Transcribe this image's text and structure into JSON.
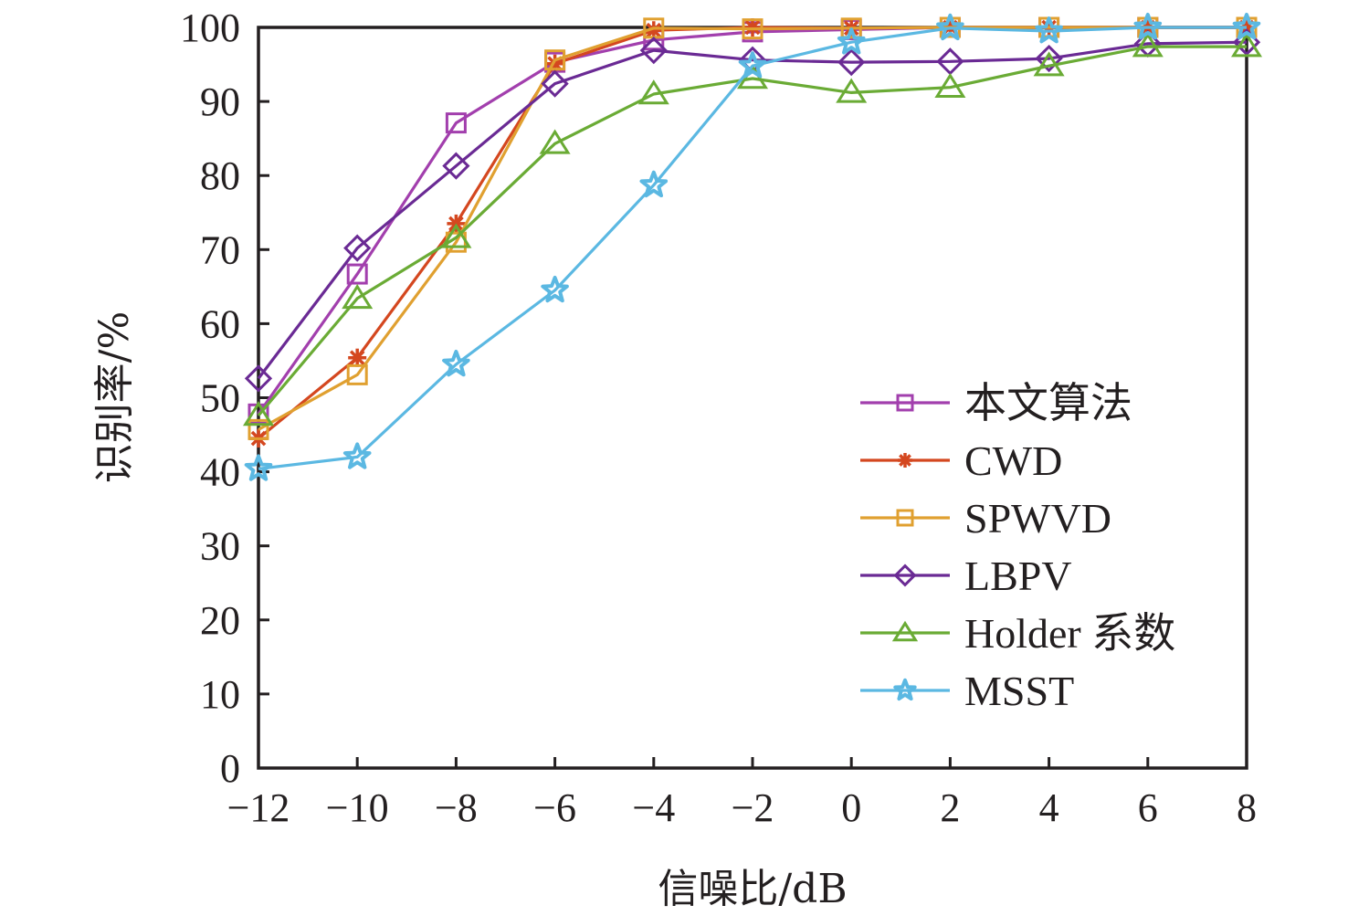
{
  "chart_data": {
    "type": "line",
    "title": "",
    "xlabel": "信噪比/dB",
    "ylabel": "识别率/%",
    "x": [
      -12,
      -10,
      -8,
      -6,
      -4,
      -2,
      0,
      2,
      4,
      6,
      8
    ],
    "xlim": [
      -12,
      8
    ],
    "ylim": [
      0,
      100
    ],
    "xticks": [
      -12,
      -10,
      -8,
      -6,
      -4,
      -2,
      0,
      2,
      4,
      6,
      8
    ],
    "xtick_labels": [
      "−12",
      "−10",
      "−8",
      "−6",
      "−4",
      "−2",
      "0",
      "2",
      "4",
      "6",
      "8"
    ],
    "yticks": [
      0,
      10,
      20,
      30,
      40,
      50,
      60,
      70,
      80,
      90,
      100
    ],
    "ytick_labels": [
      "0",
      "10",
      "20",
      "30",
      "40",
      "50",
      "60",
      "70",
      "80",
      "90",
      "100"
    ],
    "grid": false,
    "legend_position": "bottom-right",
    "series": [
      {
        "name": "本文算法",
        "color": "#a23fad",
        "marker": "square",
        "values": [
          47.8,
          66.7,
          87.1,
          95.3,
          98.3,
          99.4,
          99.7,
          100,
          100,
          100,
          100
        ]
      },
      {
        "name": "CWD",
        "color": "#d4471f",
        "marker": "asterisk",
        "values": [
          44.5,
          55.4,
          73.5,
          95.1,
          99.6,
          100,
          99.9,
          100,
          100,
          100,
          100
        ]
      },
      {
        "name": "SPWVD",
        "color": "#e0a030",
        "marker": "square",
        "values": [
          45.7,
          53.1,
          71.0,
          95.6,
          99.9,
          99.8,
          99.9,
          100,
          100,
          100,
          100
        ]
      },
      {
        "name": "LBPV",
        "color": "#6a2a94",
        "marker": "diamond",
        "values": [
          52.6,
          70.2,
          81.3,
          92.4,
          96.9,
          95.6,
          95.3,
          95.4,
          95.8,
          97.8,
          98.0
        ]
      },
      {
        "name": "Holder 系数",
        "color": "#6aab35",
        "marker": "triangle",
        "values": [
          47.6,
          63.4,
          71.6,
          84.3,
          91.0,
          93.1,
          91.2,
          91.9,
          94.8,
          97.4,
          97.4
        ]
      },
      {
        "name": "MSST",
        "color": "#5bb8e2",
        "marker": "star",
        "values": [
          40.4,
          42.0,
          54.5,
          64.5,
          78.7,
          94.8,
          98.0,
          99.9,
          99.5,
          100,
          100
        ]
      }
    ]
  }
}
